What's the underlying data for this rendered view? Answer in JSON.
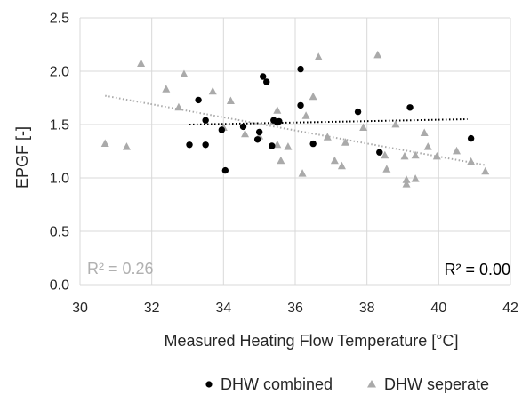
{
  "chart_data": {
    "type": "scatter",
    "xlabel": "Measured Heating Flow Temperature [°C]",
    "ylabel": "EPGF [-]",
    "xlim": [
      30,
      42
    ],
    "ylim": [
      0.0,
      2.5
    ],
    "x_ticks": [
      "30",
      "32",
      "34",
      "36",
      "38",
      "40",
      "42"
    ],
    "y_ticks": [
      "0.0",
      "0.5",
      "1.0",
      "1.5",
      "2.0",
      "2.5"
    ],
    "grid": true,
    "legend_placement": "bottom",
    "series": [
      {
        "name": "DHW combined",
        "marker": "circle",
        "color": "#000000",
        "points": [
          [
            33.05,
            1.31
          ],
          [
            33.3,
            1.73
          ],
          [
            33.5,
            1.54
          ],
          [
            33.5,
            1.31
          ],
          [
            33.95,
            1.45
          ],
          [
            34.05,
            1.07
          ],
          [
            34.55,
            1.48
          ],
          [
            34.95,
            1.36
          ],
          [
            35.0,
            1.43
          ],
          [
            35.1,
            1.95
          ],
          [
            35.2,
            1.9
          ],
          [
            35.35,
            1.3
          ],
          [
            35.4,
            1.54
          ],
          [
            35.5,
            1.52
          ],
          [
            35.55,
            1.53
          ],
          [
            36.15,
            2.02
          ],
          [
            36.15,
            1.68
          ],
          [
            36.5,
            1.32
          ],
          [
            37.75,
            1.62
          ],
          [
            38.35,
            1.24
          ],
          [
            39.2,
            1.66
          ],
          [
            40.9,
            1.37
          ]
        ],
        "trend": {
          "x": [
            33.05,
            40.8
          ],
          "y": [
            1.5,
            1.55
          ],
          "style": "dotted",
          "color": "#000000"
        },
        "r2_label": "R² = 0.00"
      },
      {
        "name": "DHW seperate",
        "marker": "triangle",
        "color": "#aaaaaa",
        "points": [
          [
            30.7,
            1.32
          ],
          [
            31.3,
            1.29
          ],
          [
            31.7,
            2.07
          ],
          [
            32.4,
            1.83
          ],
          [
            32.75,
            1.66
          ],
          [
            32.9,
            1.97
          ],
          [
            33.7,
            1.81
          ],
          [
            34.0,
            1.47
          ],
          [
            34.2,
            1.72
          ],
          [
            34.6,
            1.41
          ],
          [
            35.0,
            1.39
          ],
          [
            35.4,
            1.53
          ],
          [
            35.5,
            1.63
          ],
          [
            35.5,
            1.31
          ],
          [
            35.6,
            1.16
          ],
          [
            35.8,
            1.29
          ],
          [
            36.2,
            1.04
          ],
          [
            36.3,
            1.58
          ],
          [
            36.5,
            1.76
          ],
          [
            36.65,
            2.13
          ],
          [
            36.9,
            1.38
          ],
          [
            37.1,
            1.16
          ],
          [
            37.3,
            1.11
          ],
          [
            37.4,
            1.33
          ],
          [
            37.9,
            1.47
          ],
          [
            38.3,
            2.15
          ],
          [
            38.5,
            1.21
          ],
          [
            38.55,
            1.08
          ],
          [
            38.8,
            1.5
          ],
          [
            39.05,
            1.2
          ],
          [
            39.1,
            0.94
          ],
          [
            39.1,
            0.98
          ],
          [
            39.35,
            0.99
          ],
          [
            39.35,
            1.21
          ],
          [
            39.6,
            1.42
          ],
          [
            39.7,
            1.29
          ],
          [
            39.95,
            1.2
          ],
          [
            40.5,
            1.25
          ],
          [
            40.9,
            1.15
          ],
          [
            41.3,
            1.06
          ]
        ],
        "trend": {
          "x": [
            30.7,
            41.3
          ],
          "y": [
            1.77,
            1.12
          ],
          "style": "dotted",
          "color": "#aaaaaa"
        },
        "r2_label": "R² = 0.26"
      }
    ]
  }
}
